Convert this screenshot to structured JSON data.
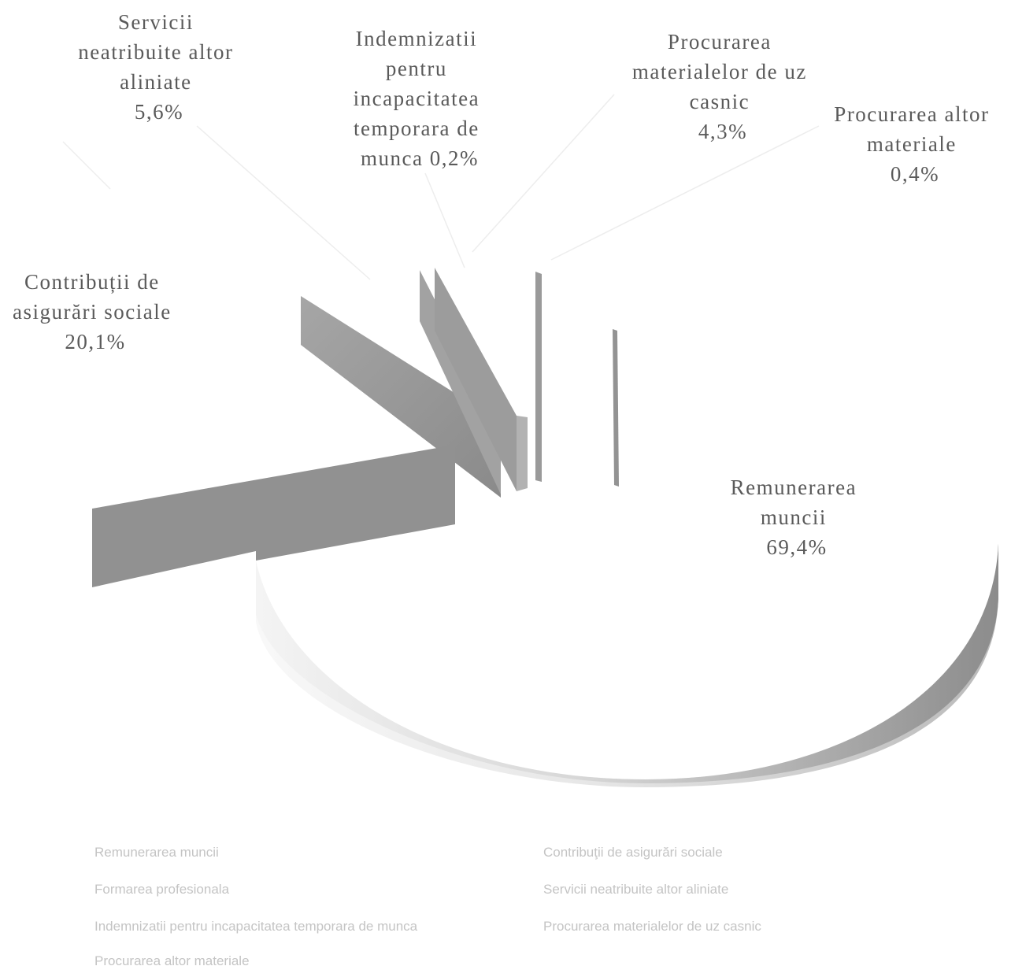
{
  "chart_data": {
    "type": "pie",
    "title": "",
    "style": "3d-exploded",
    "slices": [
      {
        "name": "Remunerarea muncii",
        "value": 69.4,
        "label_lines": [
          "Remunerarea",
          "muncii",
          "69,4%"
        ]
      },
      {
        "name": "Contribuții de asigurări sociale",
        "value": 20.1,
        "label_lines": [
          "Contribuții de",
          "asigurări sociale",
          "20,1%"
        ]
      },
      {
        "name": "Formarea profesională",
        "value": 0.0,
        "label_lines": []
      },
      {
        "name": "Servicii neatribuite altor aliniate",
        "value": 5.6,
        "label_lines": [
          "Servicii",
          "neatribuite altor",
          "aliniate",
          "5,6%"
        ]
      },
      {
        "name": "Indemnizatii pentru incapacitatea temporara de munca",
        "value": 0.2,
        "label_lines": [
          "Indemnizatii",
          "pentru",
          "incapacitatea",
          "temporara de",
          "munca 0,2%"
        ]
      },
      {
        "name": "Procurarea materialelor de uz casnic",
        "value": 4.3,
        "label_lines": [
          "Procurarea",
          "materialelor de uz",
          "casnic",
          "4,3%"
        ]
      },
      {
        "name": "Procurarea altor materiale",
        "value": 0.4,
        "label_lines": [
          "Procurarea altor",
          "materiale",
          "0,4%"
        ]
      }
    ],
    "legend": {
      "placement": "bottom",
      "entries": [
        "Remunerarea muncii",
        "Contribuţii de asigurări sociale",
        "Formarea profesionala",
        "Servicii neatribuite altor aliniate",
        "Indemnizatii pentru incapacitatea temporara de munca",
        "Procurarea materialelor de uz casnic",
        "Procurarea altor materiale"
      ]
    },
    "colors": {
      "background": "#ffffff",
      "side_light": "#ececec",
      "side_dark": "#8f8f8f",
      "wedge_side": "#9a9a9a",
      "label": "#5a5a5a",
      "leader": "#ededed",
      "legend_text": "#c4c4c4"
    }
  }
}
